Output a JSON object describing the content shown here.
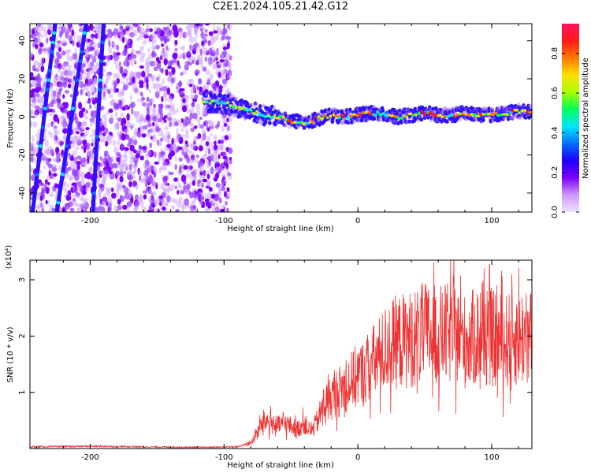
{
  "title": "C2E1.2024.105.21.42.G12",
  "chart_data": [
    {
      "type": "heatmap",
      "xlabel": "Height of straight line (km)",
      "ylabel": "Frequency (Hz)",
      "xlim": [
        -245,
        130
      ],
      "ylim": [
        -50,
        49
      ],
      "xticks": [
        -200,
        -100,
        0,
        100
      ],
      "yticks": [
        -40,
        -20,
        0,
        20,
        40
      ],
      "colorbar": {
        "label": "Normalized spectral amplitude",
        "range": [
          0,
          0.95
        ],
        "ticks": [
          "0.0",
          "0.2",
          "0.4",
          "0.6",
          "0.8"
        ],
        "colors": [
          "#f2e0ff",
          "#cc99ff",
          "#7d00ff",
          "#1c00ff",
          "#0070ff",
          "#00e8ff",
          "#00ff5a",
          "#a8ff00",
          "#ffe000",
          "#ff7800",
          "#ff1a1a",
          "#ff1060"
        ]
      },
      "features": {
        "diagonal_streaks": [
          {
            "x_at_bottom": -225,
            "x_at_top": -203
          },
          {
            "x_at_bottom": -243,
            "x_at_top": -226
          },
          {
            "x_at_bottom": -198,
            "x_at_top": -190
          }
        ],
        "noise_region_x": [
          -245,
          -100
        ],
        "main_trace": {
          "x": [
            -115,
            -100,
            -90,
            -80,
            -70,
            -60,
            -50,
            -40,
            -30,
            -20,
            -10,
            0,
            10,
            20,
            30,
            40,
            50,
            60,
            70,
            80,
            90,
            100,
            110,
            120,
            130
          ],
          "y": [
            8,
            7,
            5,
            3,
            1,
            0,
            -2,
            -3,
            -1,
            1,
            0,
            1,
            2,
            1,
            0,
            1,
            2,
            1,
            1,
            2,
            1,
            1,
            2,
            3,
            3
          ]
        }
      }
    },
    {
      "type": "line",
      "xlabel": "Height of straight line (km)",
      "ylabel": "SNR (10 * v/v)",
      "y_multiplier": "(x10⁴)",
      "xlim": [
        -245,
        130
      ],
      "ylim": [
        0,
        3.35
      ],
      "xticks": [
        -200,
        -100,
        0,
        100
      ],
      "yticks": [
        1,
        2,
        3
      ],
      "color": "#ee3333",
      "series": [
        {
          "x": [
            -245,
            -200,
            -160,
            -120,
            -90,
            -80,
            -75,
            -70,
            -65,
            -60,
            -55,
            -50,
            -45,
            -40,
            -35,
            -30,
            -25,
            -20,
            -15,
            -10,
            -5,
            0,
            5,
            10,
            15,
            20,
            25,
            30,
            40,
            50,
            60,
            70,
            80,
            90,
            100,
            110,
            120,
            130
          ],
          "y": [
            0.03,
            0.04,
            0.03,
            0.02,
            0.03,
            0.1,
            0.3,
            0.5,
            0.45,
            0.4,
            0.45,
            0.4,
            0.35,
            0.45,
            0.3,
            0.5,
            0.8,
            0.9,
            1.0,
            1.1,
            1.2,
            1.3,
            1.35,
            1.5,
            1.6,
            1.75,
            1.85,
            1.9,
            1.95,
            2.05,
            2.0,
            2.05,
            1.9,
            2.0,
            1.95,
            1.9,
            2.0,
            1.95
          ]
        }
      ]
    }
  ]
}
